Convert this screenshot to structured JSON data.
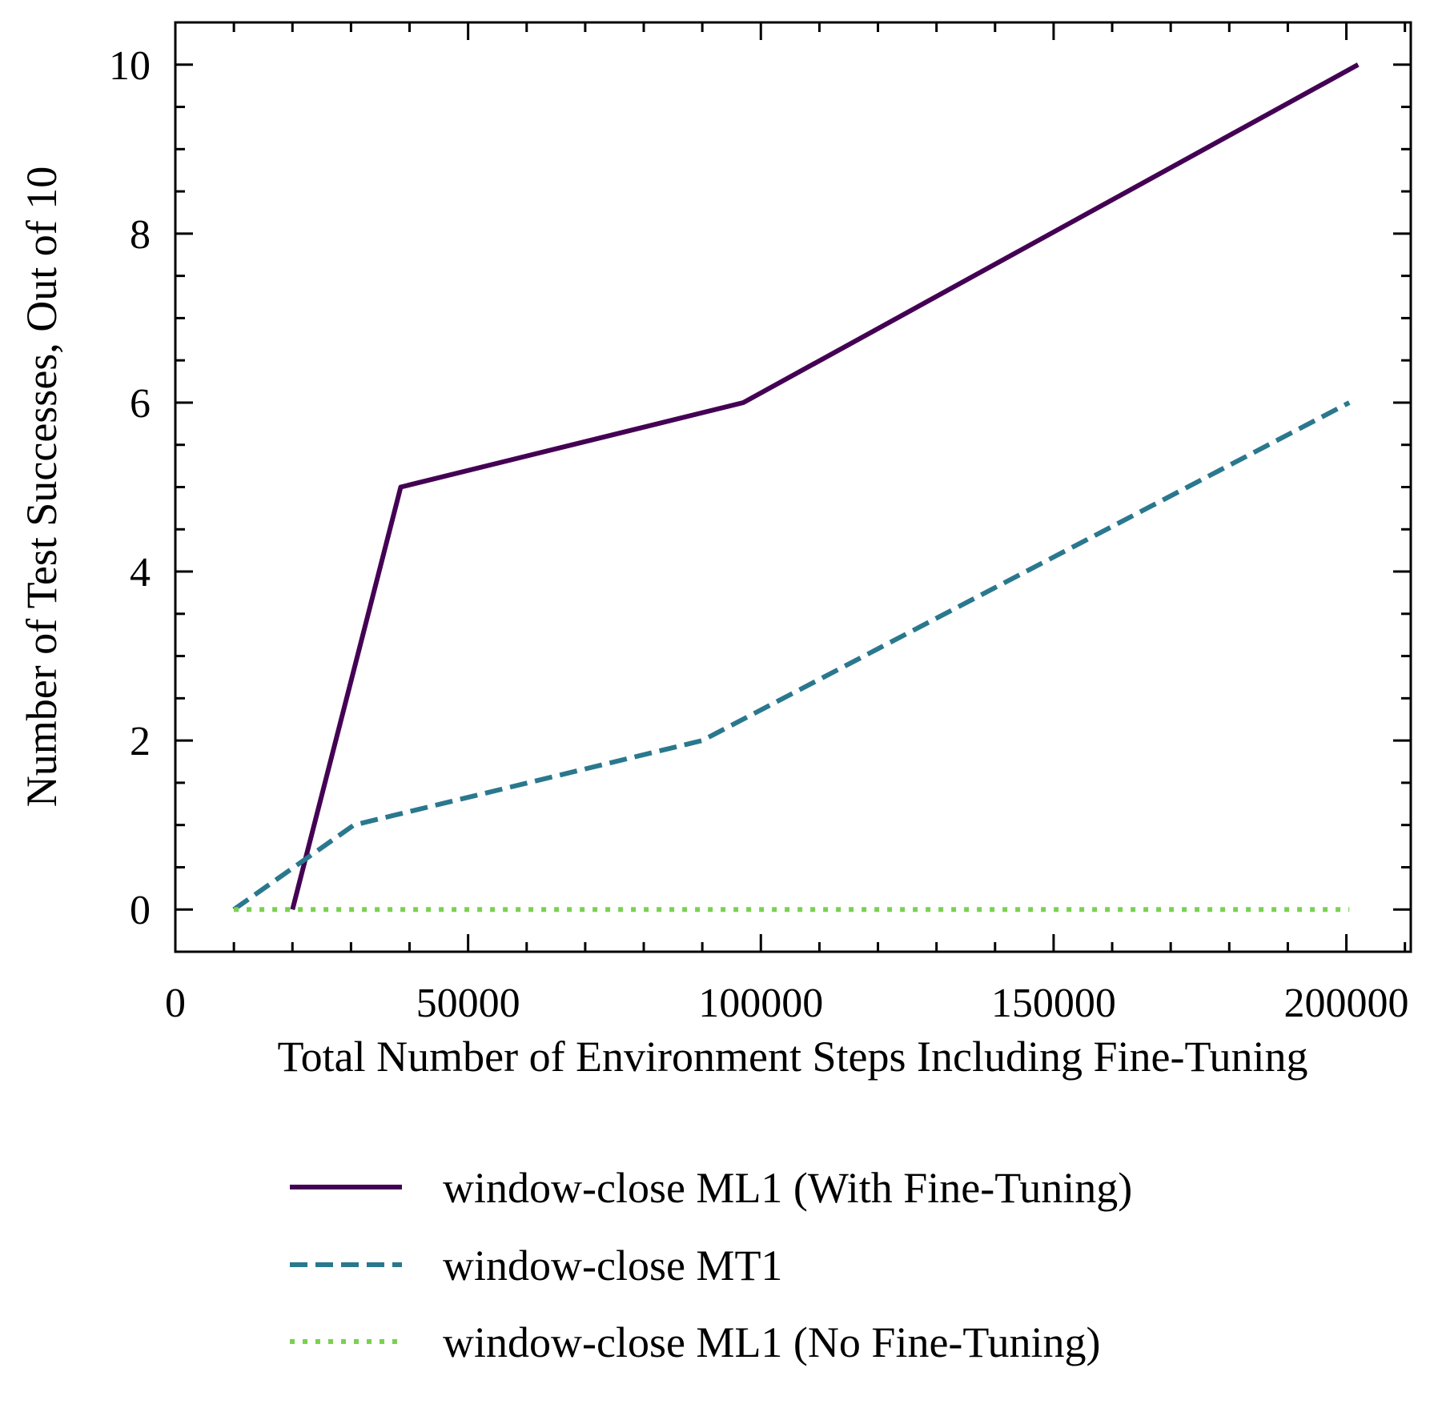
{
  "chart_data": {
    "type": "line",
    "title": "",
    "xlabel": "Total Number of Environment Steps Including Fine-Tuning",
    "ylabel": "Number of Test Successes, Out of 10",
    "xlim": [
      0,
      211000
    ],
    "ylim": [
      -0.5,
      10.5
    ],
    "xticks": [
      0,
      50000,
      100000,
      150000,
      200000
    ],
    "xtick_labels": [
      "0",
      "50000",
      "100000",
      "150000",
      "200000"
    ],
    "yticks": [
      0,
      2,
      4,
      6,
      8,
      10
    ],
    "ytick_labels": [
      "0",
      "2",
      "4",
      "6",
      "8",
      "10"
    ],
    "x_minor_step": 10000,
    "y_minor_step": 0.5,
    "grid": false,
    "legend_position": "below",
    "series": [
      {
        "name": "window-close ML1 (With Fine-Tuning)",
        "style": "solid",
        "color": "#440154",
        "x": [
          20000,
          38500,
          97000,
          202000
        ],
        "y": [
          0,
          5,
          6,
          10
        ]
      },
      {
        "name": "window-close MT1",
        "style": "dashed",
        "color": "#2a788e",
        "x": [
          10000,
          30500,
          90000,
          200500
        ],
        "y": [
          0,
          1,
          2,
          6
        ]
      },
      {
        "name": "window-close ML1 (No Fine-Tuning)",
        "style": "dotted",
        "color": "#7ad151",
        "x": [
          10000,
          20000,
          200500
        ],
        "y": [
          0,
          0,
          0
        ]
      }
    ]
  }
}
